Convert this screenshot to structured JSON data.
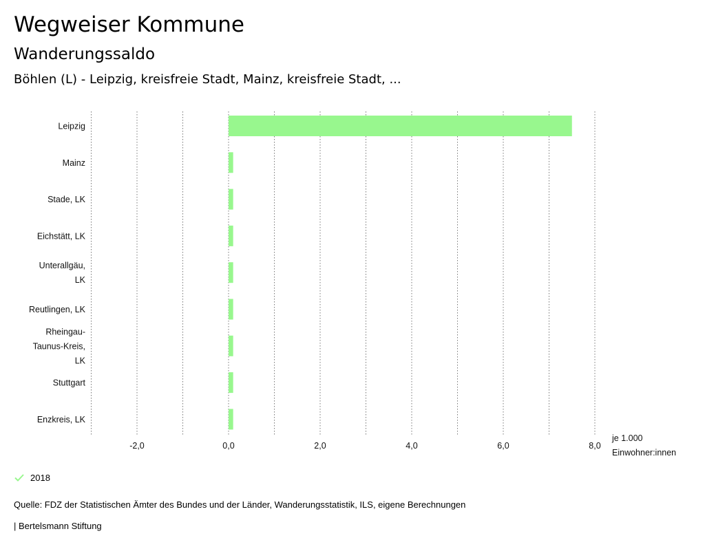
{
  "header": {
    "title": "Wegweiser Kommune",
    "subtitle": "Wanderungssaldo",
    "selection": "Böhlen (L) - Leipzig, kreisfreie Stadt, Mainz, kreisfreie Stadt, ..."
  },
  "chart_data": {
    "type": "bar",
    "orientation": "horizontal",
    "categories": [
      [
        "Leipzig"
      ],
      [
        "Mainz"
      ],
      [
        "Stade, LK"
      ],
      [
        "Eichstätt, LK"
      ],
      [
        "Unterallgäu,",
        "LK"
      ],
      [
        "Reutlingen, LK"
      ],
      [
        "Rheingau-",
        "Taunus-Kreis,",
        "LK"
      ],
      [
        "Stuttgart"
      ],
      [
        "Enzkreis, LK"
      ]
    ],
    "series": [
      {
        "name": "2018",
        "values": [
          7.5,
          0.1,
          0.1,
          0.1,
          0.1,
          0.1,
          0.1,
          0.1,
          0.1
        ]
      }
    ],
    "xlim": [
      -3.0,
      8.0
    ],
    "xticks": [
      -2,
      0,
      2,
      4,
      6,
      8
    ],
    "xtick_labels": [
      "-2,0",
      "0,0",
      "2,0",
      "4,0",
      "6,0",
      "8,0"
    ],
    "gridlines": [
      -3,
      -2,
      -1,
      0,
      1,
      2,
      3,
      4,
      5,
      6,
      7,
      8
    ],
    "unit_label": [
      "je 1.000",
      "Einwohner:innen"
    ],
    "grid": true,
    "color": "#98f78e"
  },
  "legend": {
    "label": "2018",
    "color": "#98f78e"
  },
  "footer": {
    "source": "Quelle: FDZ der Statistischen Ämter des Bundes und der Länder, Wanderungsstatistik, ILS, eigene Berechnungen",
    "brand": "| Bertelsmann Stiftung"
  }
}
